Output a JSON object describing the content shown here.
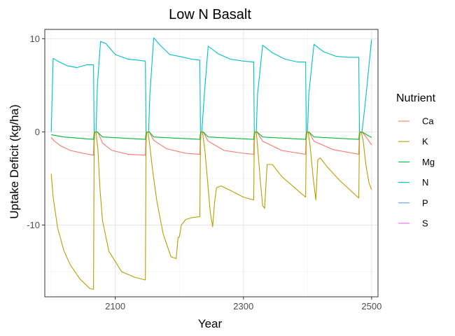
{
  "chart_data": {
    "type": "line",
    "title": "Low N Basalt",
    "xlabel": "Year",
    "ylabel": "Uptake Deficit (kg/ha)",
    "xlim": [
      1990,
      2510
    ],
    "ylim": [
      -17.7,
      11.0
    ],
    "x_ticks": [
      2100,
      2300,
      2500
    ],
    "y_ticks": [
      10,
      0,
      -10
    ],
    "x_minor_ticks": [
      2000,
      2200,
      2400
    ],
    "y_minor_ticks": [
      5,
      -5,
      -15
    ],
    "grid": true,
    "legend": {
      "title": "Nutrient",
      "position": "right",
      "entries": [
        {
          "name": "Ca",
          "color": "#F8766D"
        },
        {
          "name": "K",
          "color": "#B79F00"
        },
        {
          "name": "Mg",
          "color": "#00BA38"
        },
        {
          "name": "N",
          "color": "#00BFC4"
        },
        {
          "name": "P",
          "color": "#619CFF"
        },
        {
          "name": "S",
          "color": "#F564E3"
        }
      ]
    },
    "series": [
      {
        "name": "N",
        "color": "#00BFC4",
        "x": [
          2000,
          2003,
          2010,
          2025,
          2040,
          2055,
          2066,
          2067,
          2070,
          2072,
          2077,
          2085,
          2100,
          2120,
          2135,
          2147,
          2148,
          2152,
          2154,
          2160,
          2170,
          2185,
          2200,
          2220,
          2232,
          2233,
          2235,
          2239,
          2245,
          2260,
          2280,
          2300,
          2316,
          2317,
          2320,
          2322,
          2330,
          2345,
          2365,
          2385,
          2397,
          2398,
          2400,
          2402,
          2410,
          2425,
          2445,
          2465,
          2480,
          2481,
          2485,
          2490,
          2495,
          2500
        ],
        "y": [
          0,
          7.9,
          7.6,
          7.1,
          6.9,
          7.2,
          7.2,
          0,
          0,
          5,
          9.7,
          9.5,
          8.3,
          7.8,
          7.7,
          7.6,
          0,
          0,
          4,
          10.1,
          9.3,
          8.3,
          8.1,
          7.8,
          7.7,
          0,
          0,
          4,
          9.2,
          8.4,
          7.8,
          7.6,
          7.5,
          0,
          0,
          4,
          9.3,
          8.5,
          7.8,
          7.5,
          7.5,
          0,
          0,
          4,
          9.4,
          8.6,
          8.1,
          8.0,
          8.0,
          0,
          0,
          3,
          6.5,
          9.9
        ]
      },
      {
        "name": "Ca",
        "color": "#F8766D",
        "x": [
          2000,
          2005,
          2015,
          2030,
          2050,
          2066,
          2067,
          2072,
          2074,
          2080,
          2095,
          2120,
          2147,
          2148,
          2153,
          2160,
          2180,
          2210,
          2232,
          2233,
          2237,
          2245,
          2270,
          2300,
          2316,
          2317,
          2321,
          2330,
          2360,
          2397,
          2398,
          2402,
          2410,
          2440,
          2480,
          2481,
          2485,
          2492,
          2500
        ],
        "y": [
          -0.6,
          -1.0,
          -1.5,
          -2.0,
          -2.3,
          -2.5,
          -0.1,
          0,
          -0.2,
          -1.2,
          -2.0,
          -2.4,
          -2.5,
          -0.1,
          0,
          -0.9,
          -1.8,
          -2.3,
          -2.4,
          -0.1,
          0,
          -1.0,
          -2.0,
          -2.3,
          -2.4,
          -0.1,
          0,
          -1.0,
          -2.0,
          -2.4,
          -0.1,
          0,
          -1.0,
          -1.9,
          -2.4,
          -0.1,
          0,
          -0.6,
          -1.4
        ]
      },
      {
        "name": "Mg",
        "color": "#00BA38",
        "x": [
          2000,
          2020,
          2066,
          2067,
          2072,
          2080,
          2147,
          2148,
          2153,
          2160,
          2232,
          2233,
          2237,
          2245,
          2316,
          2317,
          2321,
          2330,
          2397,
          2398,
          2402,
          2410,
          2480,
          2481,
          2485,
          2492,
          2500
        ],
        "y": [
          -0.3,
          -0.55,
          -0.8,
          -0.1,
          0,
          -0.55,
          -0.8,
          -0.1,
          0,
          -0.55,
          -0.8,
          -0.1,
          0,
          -0.55,
          -0.8,
          -0.1,
          0,
          -0.55,
          -0.8,
          -0.1,
          0,
          -0.55,
          -0.8,
          -0.1,
          0,
          -0.3,
          -0.6
        ]
      },
      {
        "name": "K",
        "color": "#B79F00",
        "x": [
          2000,
          2003,
          2010,
          2020,
          2030,
          2045,
          2060,
          2066,
          2067,
          2068,
          2070,
          2073,
          2076,
          2080,
          2090,
          2110,
          2130,
          2147,
          2148,
          2149,
          2151,
          2154,
          2158,
          2165,
          2175,
          2187,
          2195,
          2198,
          2200,
          2203,
          2210,
          2220,
          2232,
          2233,
          2234,
          2236,
          2240,
          2248,
          2252,
          2255,
          2258,
          2265,
          2280,
          2300,
          2316,
          2317,
          2318,
          2320,
          2322,
          2326,
          2330,
          2333,
          2337,
          2345,
          2360,
          2390,
          2397,
          2398,
          2399,
          2401,
          2404,
          2409,
          2413,
          2416,
          2420,
          2430,
          2450,
          2480,
          2481,
          2482,
          2484,
          2487,
          2491,
          2496,
          2500
        ],
        "y": [
          -4.5,
          -7.0,
          -10.3,
          -12.8,
          -14.3,
          -15.8,
          -16.8,
          -16.9,
          -1.5,
          0,
          0,
          -2.0,
          -6.0,
          -9.5,
          -12.8,
          -15.0,
          -15.6,
          -15.9,
          -1.5,
          0,
          0,
          -1.5,
          -4.0,
          -7.5,
          -11.0,
          -13.4,
          -13.6,
          -11.3,
          -11.3,
          -10.0,
          -9.4,
          -9.2,
          -9.1,
          -1.0,
          0,
          0,
          -2.0,
          -8.5,
          -10.2,
          -7.5,
          -6.0,
          -5.8,
          -6.3,
          -7.0,
          -7.3,
          -1.0,
          0,
          0,
          -1.5,
          -5.0,
          -7.9,
          -8.2,
          -3.5,
          -3.5,
          -4.8,
          -6.6,
          -7.0,
          -1.0,
          0,
          0,
          -1.5,
          -5.0,
          -7.3,
          -3.0,
          -2.8,
          -3.7,
          -5.2,
          -7.1,
          -0.8,
          0,
          0,
          -1.0,
          -3.5,
          -5.5,
          -6.2
        ]
      }
    ]
  }
}
